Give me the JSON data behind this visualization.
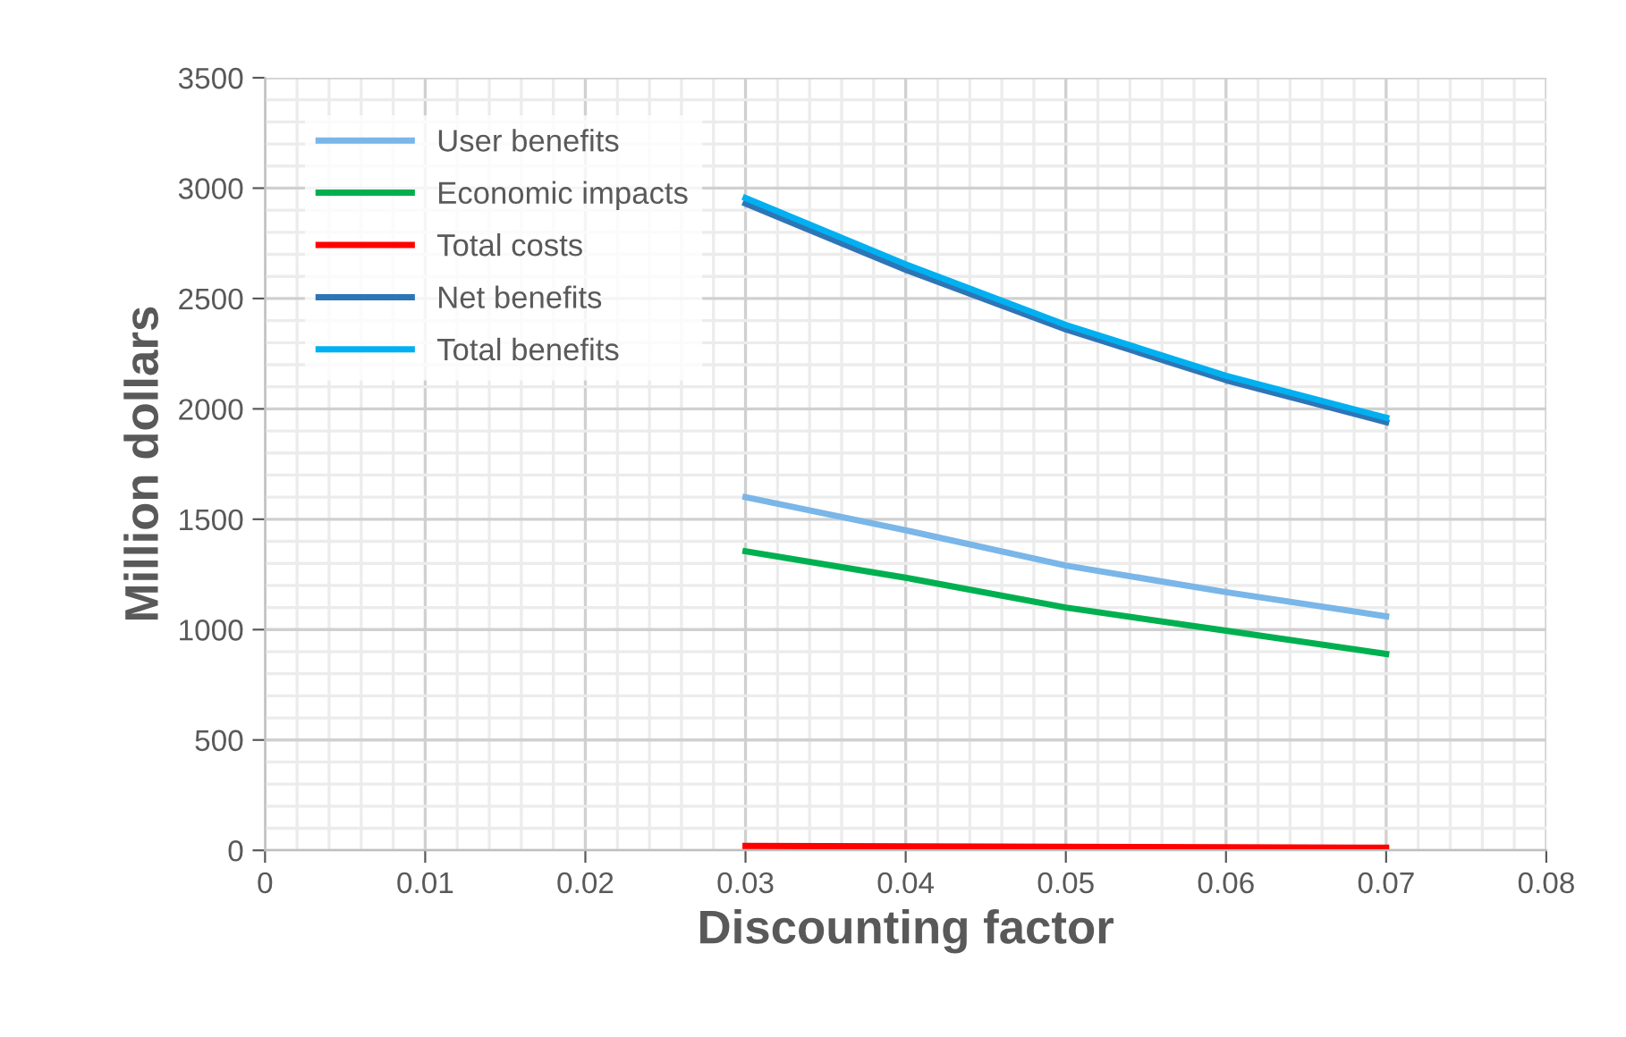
{
  "chart_data": {
    "type": "line",
    "xlabel": "Discounting factor",
    "ylabel": "Million dollars",
    "x": [
      0.03,
      0.04,
      0.05,
      0.06,
      0.07
    ],
    "series": [
      {
        "name": "User benefits",
        "color": "#7ab6e8",
        "values": [
          1600,
          1450,
          1290,
          1170,
          1060
        ]
      },
      {
        "name": "Economic impacts",
        "color": "#00b050",
        "values": [
          1355,
          1235,
          1100,
          995,
          890
        ]
      },
      {
        "name": "Total costs",
        "color": "#ff0000",
        "values": [
          20,
          18,
          16,
          14,
          12
        ]
      },
      {
        "name": "Net benefits",
        "color": "#2e75b6",
        "values": [
          2930,
          2630,
          2360,
          2130,
          1940
        ]
      },
      {
        "name": "Total benefits",
        "color": "#00b0f0",
        "values": [
          2955,
          2655,
          2380,
          2150,
          1960
        ]
      }
    ],
    "xlim": [
      0,
      0.08
    ],
    "xticks": [
      0,
      0.01,
      0.02,
      0.03,
      0.04,
      0.05,
      0.06,
      0.07,
      0.08
    ],
    "ylim": [
      0,
      3500
    ],
    "yticks": [
      0,
      500,
      1000,
      1500,
      2000,
      2500,
      3000,
      3500
    ],
    "grid": true,
    "legend": "top left",
    "marker": "none",
    "line_style": "solid"
  }
}
